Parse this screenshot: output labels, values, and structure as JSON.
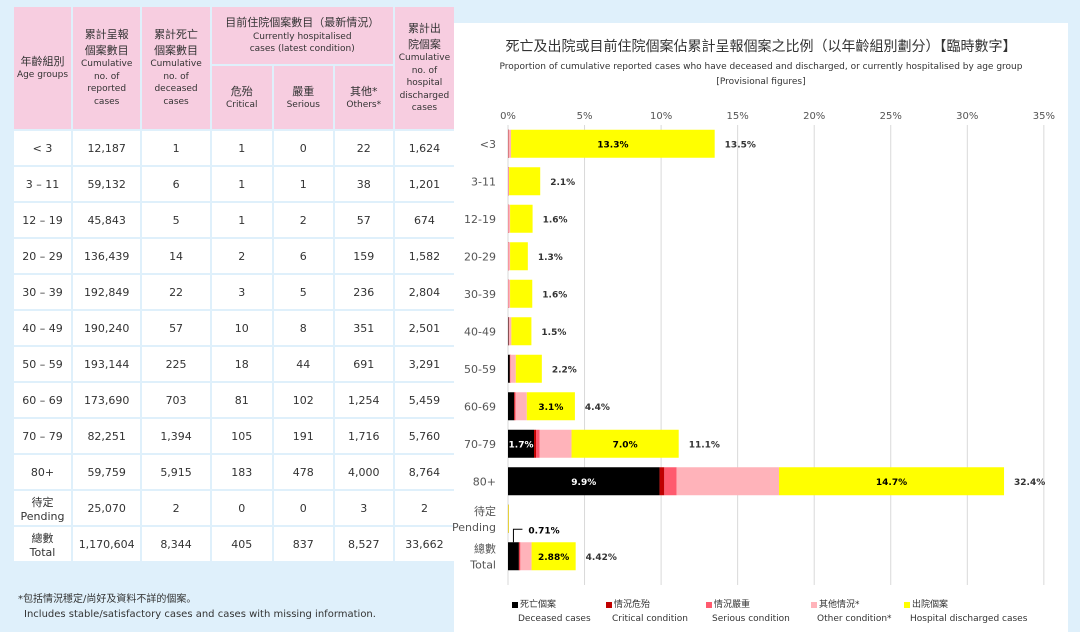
{
  "table": {
    "headers": {
      "age_zh": "年齡組別",
      "age_en": "Age groups",
      "reported_zh": "累計呈報個案數目",
      "reported_en": "Cumulative no. of reported cases",
      "deceased_zh": "累計死亡個案數目",
      "deceased_en": "Cumulative no. of deceased cases",
      "hosp_zh": "目前住院個案數目（最新情況）",
      "hosp_en": "Currently hospitalised cases (latest condition)",
      "critical_zh": "危殆",
      "critical_en": "Critical",
      "serious_zh": "嚴重",
      "serious_en": "Serious",
      "others_zh": "其他*",
      "others_en": "Others*",
      "discharged_zh": "累計出院個案",
      "discharged_en": "Cumulative no. of hospital discharged cases"
    },
    "rows": [
      {
        "age": "< 3",
        "reported": "12,187",
        "deceased": "1",
        "critical": "1",
        "serious": "0",
        "others": "22",
        "discharged": "1,624"
      },
      {
        "age": "3 – 11",
        "reported": "59,132",
        "deceased": "6",
        "critical": "1",
        "serious": "1",
        "others": "38",
        "discharged": "1,201"
      },
      {
        "age": "12 – 19",
        "reported": "45,843",
        "deceased": "5",
        "critical": "1",
        "serious": "2",
        "others": "57",
        "discharged": "674"
      },
      {
        "age": "20 – 29",
        "reported": "136,439",
        "deceased": "14",
        "critical": "2",
        "serious": "6",
        "others": "159",
        "discharged": "1,582"
      },
      {
        "age": "30 – 39",
        "reported": "192,849",
        "deceased": "22",
        "critical": "3",
        "serious": "5",
        "others": "236",
        "discharged": "2,804"
      },
      {
        "age": "40 – 49",
        "reported": "190,240",
        "deceased": "57",
        "critical": "10",
        "serious": "8",
        "others": "351",
        "discharged": "2,501"
      },
      {
        "age": "50 – 59",
        "reported": "193,144",
        "deceased": "225",
        "critical": "18",
        "serious": "44",
        "others": "691",
        "discharged": "3,291"
      },
      {
        "age": "60 – 69",
        "reported": "173,690",
        "deceased": "703",
        "critical": "81",
        "serious": "102",
        "others": "1,254",
        "discharged": "5,459"
      },
      {
        "age": "70 – 79",
        "reported": "82,251",
        "deceased": "1,394",
        "critical": "105",
        "serious": "191",
        "others": "1,716",
        "discharged": "5,760"
      },
      {
        "age": "80+",
        "reported": "59,759",
        "deceased": "5,915",
        "critical": "183",
        "serious": "478",
        "others": "4,000",
        "discharged": "8,764"
      },
      {
        "age_zh": "待定",
        "age_en": "Pending",
        "reported": "25,070",
        "deceased": "2",
        "critical": "0",
        "serious": "0",
        "others": "3",
        "discharged": "2"
      },
      {
        "age_zh": "總數",
        "age_en": "Total",
        "reported": "1,170,604",
        "deceased": "8,344",
        "critical": "405",
        "serious": "837",
        "others": "8,527",
        "discharged": "33,662"
      }
    ]
  },
  "notes": {
    "zh": "*包括情況穩定/尚好及資料不詳的個案。",
    "en": "Includes stable/satisfactory cases and cases with missing information."
  },
  "chart_data": {
    "type": "bar",
    "orientation": "horizontal",
    "stacked": true,
    "title": "死亡及出院或目前住院個案佔累計呈報個案之比例（以年齡組別劃分）【臨時數字】",
    "subtitle": "Proportion of cumulative reported cases who have deceased and discharged, or currently hospitalised by age group",
    "subtitle2": "[Provisional figures]",
    "xlim": [
      0,
      35
    ],
    "xticks": [
      "0%",
      "5%",
      "10%",
      "15%",
      "20%",
      "25%",
      "30%",
      "35%"
    ],
    "grid": true,
    "legend_position": "bottom",
    "categories": [
      "<3",
      "3-11",
      "12-19",
      "20-29",
      "30-39",
      "40-49",
      "50-59",
      "60-69",
      "70-79",
      "80+",
      "待定 Pending",
      "總數 Total"
    ],
    "category_lines": [
      [
        "<3"
      ],
      [
        "3-11"
      ],
      [
        "12-19"
      ],
      [
        "20-29"
      ],
      [
        "30-39"
      ],
      [
        "40-49"
      ],
      [
        "50-59"
      ],
      [
        "60-69"
      ],
      [
        "70-79"
      ],
      [
        "80+"
      ],
      [
        "待定",
        "Pending"
      ],
      [
        "總數",
        "Total"
      ]
    ],
    "series": [
      {
        "name_zh": "死亡個案",
        "name_en": "Deceased cases",
        "color": "#000000",
        "values": [
          0.01,
          0.01,
          0.01,
          0.01,
          0.01,
          0.03,
          0.12,
          0.4,
          1.7,
          9.9,
          0.01,
          0.71
        ],
        "labels": [
          "",
          "",
          "",
          "",
          "",
          "",
          "",
          "",
          "1.7%",
          "9.9%",
          "",
          ""
        ]
      },
      {
        "name_zh": "情況危殆",
        "name_en": "Critical condition",
        "color": "#c00000",
        "values": [
          0.01,
          0.002,
          0.002,
          0.001,
          0.002,
          0.005,
          0.01,
          0.05,
          0.13,
          0.31,
          0,
          0.03
        ],
        "labels": [
          "",
          "",
          "",
          "",
          "",
          "",
          "",
          "",
          "",
          "",
          "",
          ""
        ]
      },
      {
        "name_zh": "情況嚴重",
        "name_en": "Serious condition",
        "color": "#ff5a6e",
        "values": [
          0,
          0.002,
          0.004,
          0.004,
          0.003,
          0.004,
          0.02,
          0.06,
          0.23,
          0.8,
          0,
          0.07
        ],
        "labels": [
          "",
          "",
          "",
          "",
          "",
          "",
          "",
          "",
          "",
          "",
          "",
          ""
        ]
      },
      {
        "name_zh": "其他情況*",
        "name_en": "Other condition*",
        "color": "#ffb3ba",
        "values": [
          0.18,
          0.06,
          0.12,
          0.12,
          0.12,
          0.18,
          0.36,
          0.72,
          2.09,
          6.69,
          0.01,
          0.73
        ],
        "labels": [
          "",
          "",
          "",
          "",
          "",
          "",
          "",
          "",
          "",
          "",
          "",
          ""
        ]
      },
      {
        "name_zh": "出院個案",
        "name_en": "Hospital discharged cases",
        "color": "#ffff00",
        "values": [
          13.3,
          2.03,
          1.47,
          1.16,
          1.45,
          1.31,
          1.7,
          3.14,
          7.0,
          14.7,
          0.01,
          2.88
        ],
        "labels": [
          "13.3%",
          "",
          "",
          "",
          "",
          "",
          "",
          "3.1%",
          "7.0%",
          "14.7%",
          "",
          "2.88%"
        ]
      }
    ],
    "totals": [
      "13.5%",
      "2.1%",
      "1.6%",
      "1.3%",
      "1.6%",
      "1.5%",
      "2.2%",
      "4.4%",
      "11.1%",
      "32.4%",
      "",
      "4.42%"
    ],
    "total_callout": "0.71%"
  }
}
